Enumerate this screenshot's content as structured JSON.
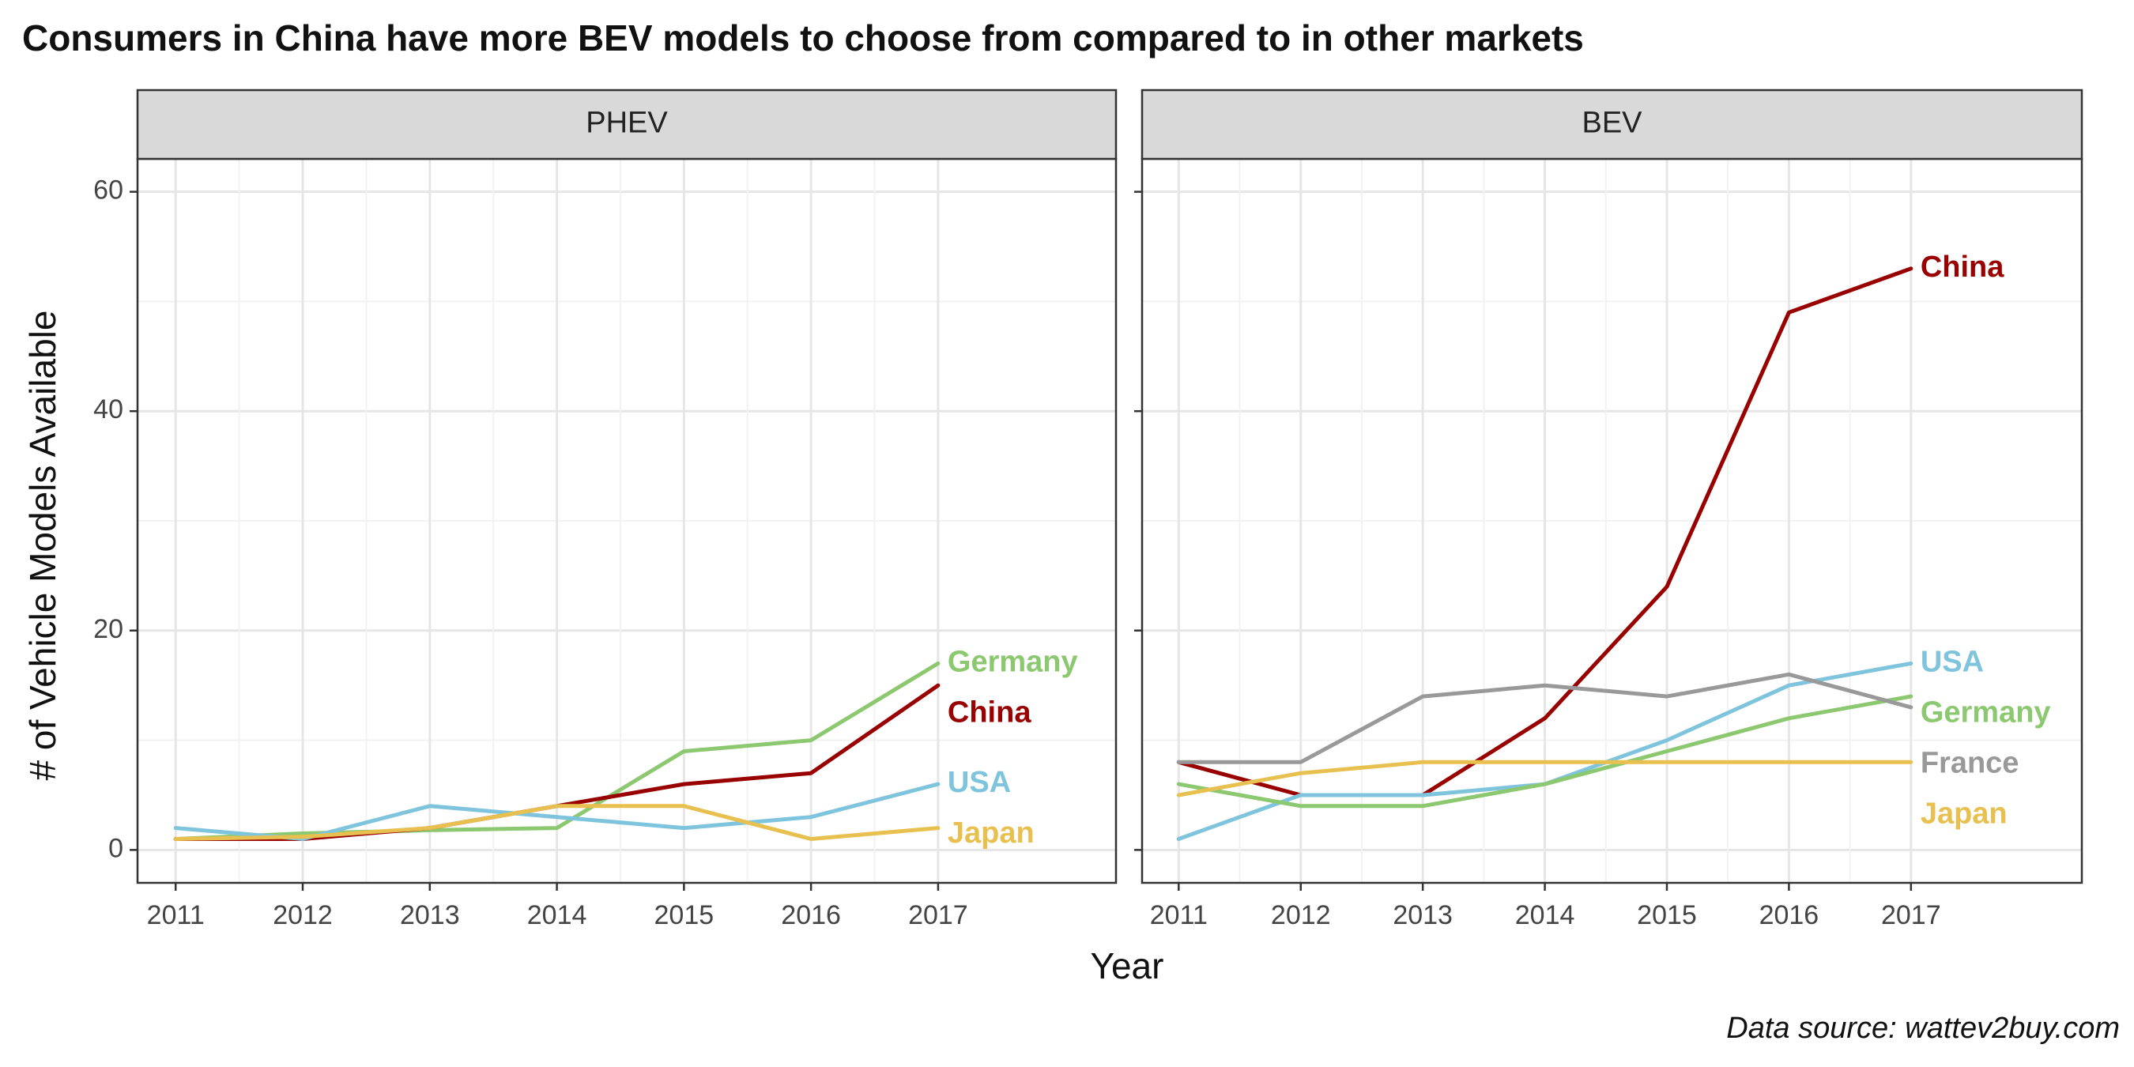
{
  "chart_data": {
    "type": "line",
    "title": "Consumers in China have more BEV models to choose from compared to in other markets",
    "xlabel": "Year",
    "ylabel": "# of Vehicle Models Available",
    "caption": "Data source: wattev2buy.com",
    "x": [
      2011,
      2012,
      2013,
      2014,
      2015,
      2016,
      2017
    ],
    "xlim": [
      2010.7,
      2018.4
    ],
    "ylim": [
      -3,
      63
    ],
    "yticks": [
      0,
      20,
      40,
      60
    ],
    "grid": true,
    "legend": "none (direct labels at line ends)",
    "panels": [
      {
        "strip": "PHEV",
        "series": [
          {
            "name": "Germany",
            "color": "#8cc870",
            "values": [
              1,
              1.5,
              1.8,
              2,
              9,
              10,
              17
            ]
          },
          {
            "name": "China",
            "color": "#990000",
            "values": [
              1,
              1,
              2,
              4,
              6,
              7,
              15
            ]
          },
          {
            "name": "USA",
            "color": "#7ec4dc",
            "values": [
              2,
              1,
              4,
              3,
              2,
              3,
              6
            ]
          },
          {
            "name": "Japan",
            "color": "#e8c050",
            "values": [
              1,
              1.2,
              2,
              4,
              4,
              1,
              2
            ]
          }
        ]
      },
      {
        "strip": "BEV",
        "series": [
          {
            "name": "China",
            "color": "#990000",
            "values": [
              8,
              5,
              5,
              12,
              24,
              49,
              53
            ]
          },
          {
            "name": "USA",
            "color": "#7ec4dc",
            "values": [
              1,
              5,
              5,
              6,
              10,
              15,
              17
            ]
          },
          {
            "name": "Germany",
            "color": "#8cc870",
            "values": [
              6,
              4,
              4,
              6,
              9,
              12,
              14
            ]
          },
          {
            "name": "France",
            "color": "#999999",
            "values": [
              8,
              8,
              14,
              15,
              14,
              16,
              13
            ]
          },
          {
            "name": "Japan",
            "color": "#e8c050",
            "values": [
              5,
              7,
              8,
              8,
              8,
              8,
              8
            ]
          }
        ]
      }
    ]
  }
}
